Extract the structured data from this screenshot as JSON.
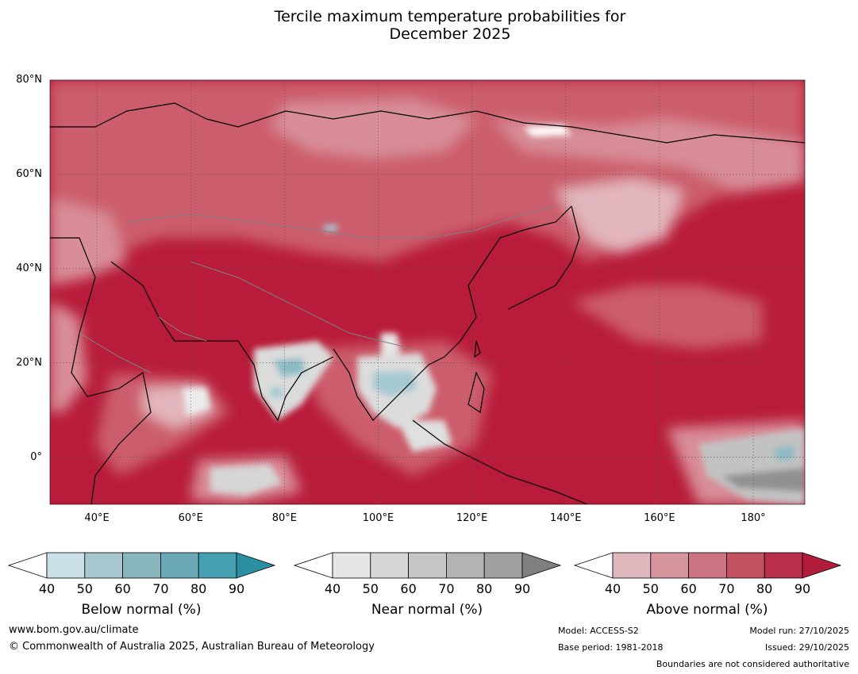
{
  "title": {
    "line1": "Tercile maximum temperature probabilities for",
    "line2": "December 2025"
  },
  "map": {
    "lat_labels": [
      "80°N",
      "60°N",
      "40°N",
      "20°N",
      "0°"
    ],
    "lon_labels": [
      "40°E",
      "60°E",
      "80°E",
      "100°E",
      "120°E",
      "140°E",
      "160°E",
      "180°"
    ],
    "lat_values": [
      80,
      60,
      40,
      20,
      0
    ],
    "lon_values": [
      40,
      60,
      80,
      100,
      120,
      140,
      160,
      180
    ],
    "extent": {
      "lon_min": 30,
      "lon_max": 191,
      "lat_min": -10,
      "lat_max": 80
    }
  },
  "colorbars": [
    {
      "name": "below",
      "label": "Below normal (%)",
      "ticks": [
        "40",
        "50",
        "60",
        "70",
        "80",
        "90"
      ],
      "colors": [
        "#ffffff",
        "#c8e0e6",
        "#a6c7ce",
        "#89b5bf",
        "#6aa8b5",
        "#449fb0",
        "#2b8fa3"
      ]
    },
    {
      "name": "near",
      "label": "Near normal (%)",
      "ticks": [
        "40",
        "50",
        "60",
        "70",
        "80",
        "90"
      ],
      "colors": [
        "#ffffff",
        "#e6e6e6",
        "#d6d6d6",
        "#c6c6c6",
        "#b3b3b3",
        "#a0a0a0",
        "#7f7f7f"
      ]
    },
    {
      "name": "above",
      "label": "Above normal (%)",
      "ticks": [
        "40",
        "50",
        "60",
        "70",
        "80",
        "90"
      ],
      "colors": [
        "#ffffff",
        "#dfb7bd",
        "#d6959d",
        "#cc7481",
        "#c2525f",
        "#b83049",
        "#b01c3a"
      ]
    }
  ],
  "footer": {
    "website": "www.bom.gov.au/climate",
    "copyright": "© Commonwealth of Australia 2025, Australian Bureau of Meteorology",
    "model": "Model: ACCESS-S2",
    "base_period": "Base period: 1981-2018",
    "model_run": "Model run: 27/10/2025",
    "issued": "Issued: 29/10/2025",
    "disclaimer": "Boundaries are not considered authoritative"
  }
}
